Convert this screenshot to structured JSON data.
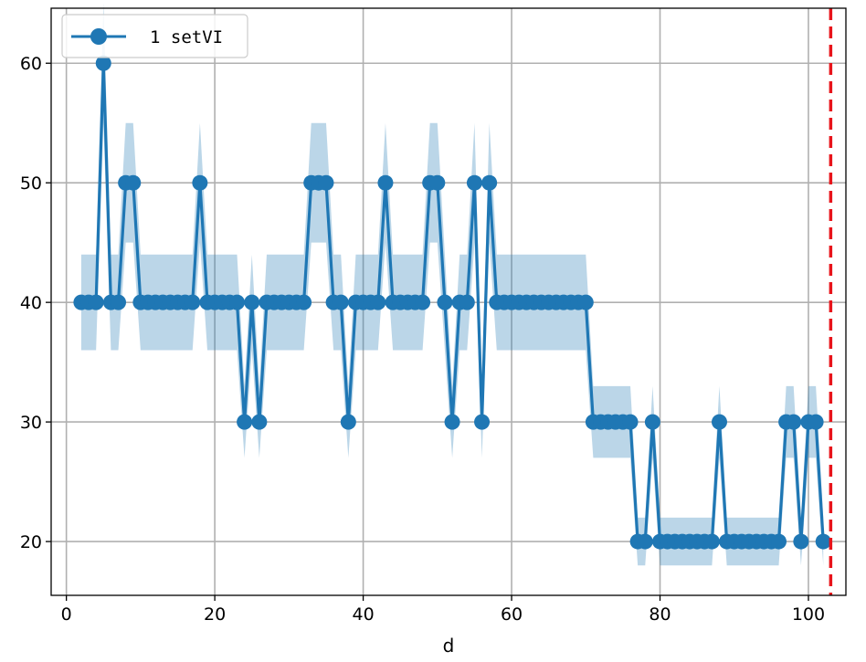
{
  "chart_data": {
    "type": "line",
    "xlabel": "d",
    "ylabel": "",
    "xlim": [
      -2.05,
      105.05
    ],
    "ylim": [
      15.5,
      64.6
    ],
    "xticks": [
      0,
      20,
      40,
      60,
      80,
      100
    ],
    "yticks": [
      20,
      30,
      40,
      50,
      60
    ],
    "grid": true,
    "legend_position": "top-left",
    "colors": {
      "line": "#1f77b4",
      "band": "#1f77b4",
      "vline": "#e8141b",
      "grid": "#b0b0b0"
    },
    "vline_x": 103,
    "series": [
      {
        "name": "1 setVI",
        "x": [
          2,
          3,
          4,
          5,
          6,
          7,
          8,
          9,
          10,
          11,
          12,
          13,
          14,
          15,
          16,
          17,
          18,
          19,
          20,
          21,
          22,
          23,
          24,
          25,
          26,
          27,
          28,
          29,
          30,
          31,
          32,
          33,
          34,
          35,
          36,
          37,
          38,
          39,
          40,
          41,
          42,
          43,
          44,
          45,
          46,
          47,
          48,
          49,
          50,
          51,
          52,
          53,
          54,
          55,
          56,
          57,
          58,
          59,
          60,
          61,
          62,
          63,
          64,
          65,
          66,
          67,
          68,
          69,
          70,
          71,
          72,
          73,
          74,
          75,
          76,
          77,
          78,
          79,
          80,
          81,
          82,
          83,
          84,
          85,
          86,
          87,
          88,
          89,
          90,
          91,
          92,
          93,
          94,
          95,
          96,
          97,
          98,
          99,
          100,
          101,
          102
        ],
        "y": [
          40,
          40,
          40,
          60,
          40,
          40,
          50,
          50,
          40,
          40,
          40,
          40,
          40,
          40,
          40,
          40,
          50,
          40,
          40,
          40,
          40,
          40,
          30,
          40,
          30,
          40,
          40,
          40,
          40,
          40,
          40,
          50,
          50,
          50,
          40,
          40,
          30,
          40,
          40,
          40,
          40,
          50,
          40,
          40,
          40,
          40,
          40,
          50,
          50,
          40,
          30,
          40,
          40,
          50,
          30,
          50,
          40,
          40,
          40,
          40,
          40,
          40,
          40,
          40,
          40,
          40,
          40,
          40,
          40,
          30,
          30,
          30,
          30,
          30,
          30,
          20,
          20,
          30,
          20,
          20,
          20,
          20,
          20,
          20,
          20,
          20,
          30,
          20,
          20,
          20,
          20,
          20,
          20,
          20,
          20,
          30,
          30,
          20,
          30,
          30,
          20
        ],
        "lower": [
          36,
          36,
          36,
          55,
          36,
          36,
          45,
          45,
          36,
          36,
          36,
          36,
          36,
          36,
          36,
          36,
          45,
          36,
          36,
          36,
          36,
          36,
          27,
          36,
          27,
          36,
          36,
          36,
          36,
          36,
          36,
          45,
          45,
          45,
          36,
          36,
          27,
          36,
          36,
          36,
          36,
          45,
          36,
          36,
          36,
          36,
          36,
          45,
          45,
          36,
          27,
          36,
          36,
          45,
          27,
          45,
          36,
          36,
          36,
          36,
          36,
          36,
          36,
          36,
          36,
          36,
          36,
          36,
          36,
          27,
          27,
          27,
          27,
          27,
          27,
          18,
          18,
          27,
          18,
          18,
          18,
          18,
          18,
          18,
          18,
          18,
          27,
          18,
          18,
          18,
          18,
          18,
          18,
          18,
          18,
          27,
          27,
          18,
          27,
          27,
          18
        ],
        "upper": [
          44,
          44,
          44,
          65,
          44,
          44,
          55,
          55,
          44,
          44,
          44,
          44,
          44,
          44,
          44,
          44,
          55,
          44,
          44,
          44,
          44,
          44,
          33,
          44,
          33,
          44,
          44,
          44,
          44,
          44,
          44,
          55,
          55,
          55,
          44,
          44,
          33,
          44,
          44,
          44,
          44,
          55,
          44,
          44,
          44,
          44,
          44,
          55,
          55,
          44,
          33,
          44,
          44,
          55,
          33,
          55,
          44,
          44,
          44,
          44,
          44,
          44,
          44,
          44,
          44,
          44,
          44,
          44,
          44,
          33,
          33,
          33,
          33,
          33,
          33,
          22,
          22,
          33,
          22,
          22,
          22,
          22,
          22,
          22,
          22,
          22,
          33,
          22,
          22,
          22,
          22,
          22,
          22,
          22,
          22,
          33,
          33,
          22,
          33,
          33,
          22
        ]
      }
    ]
  }
}
